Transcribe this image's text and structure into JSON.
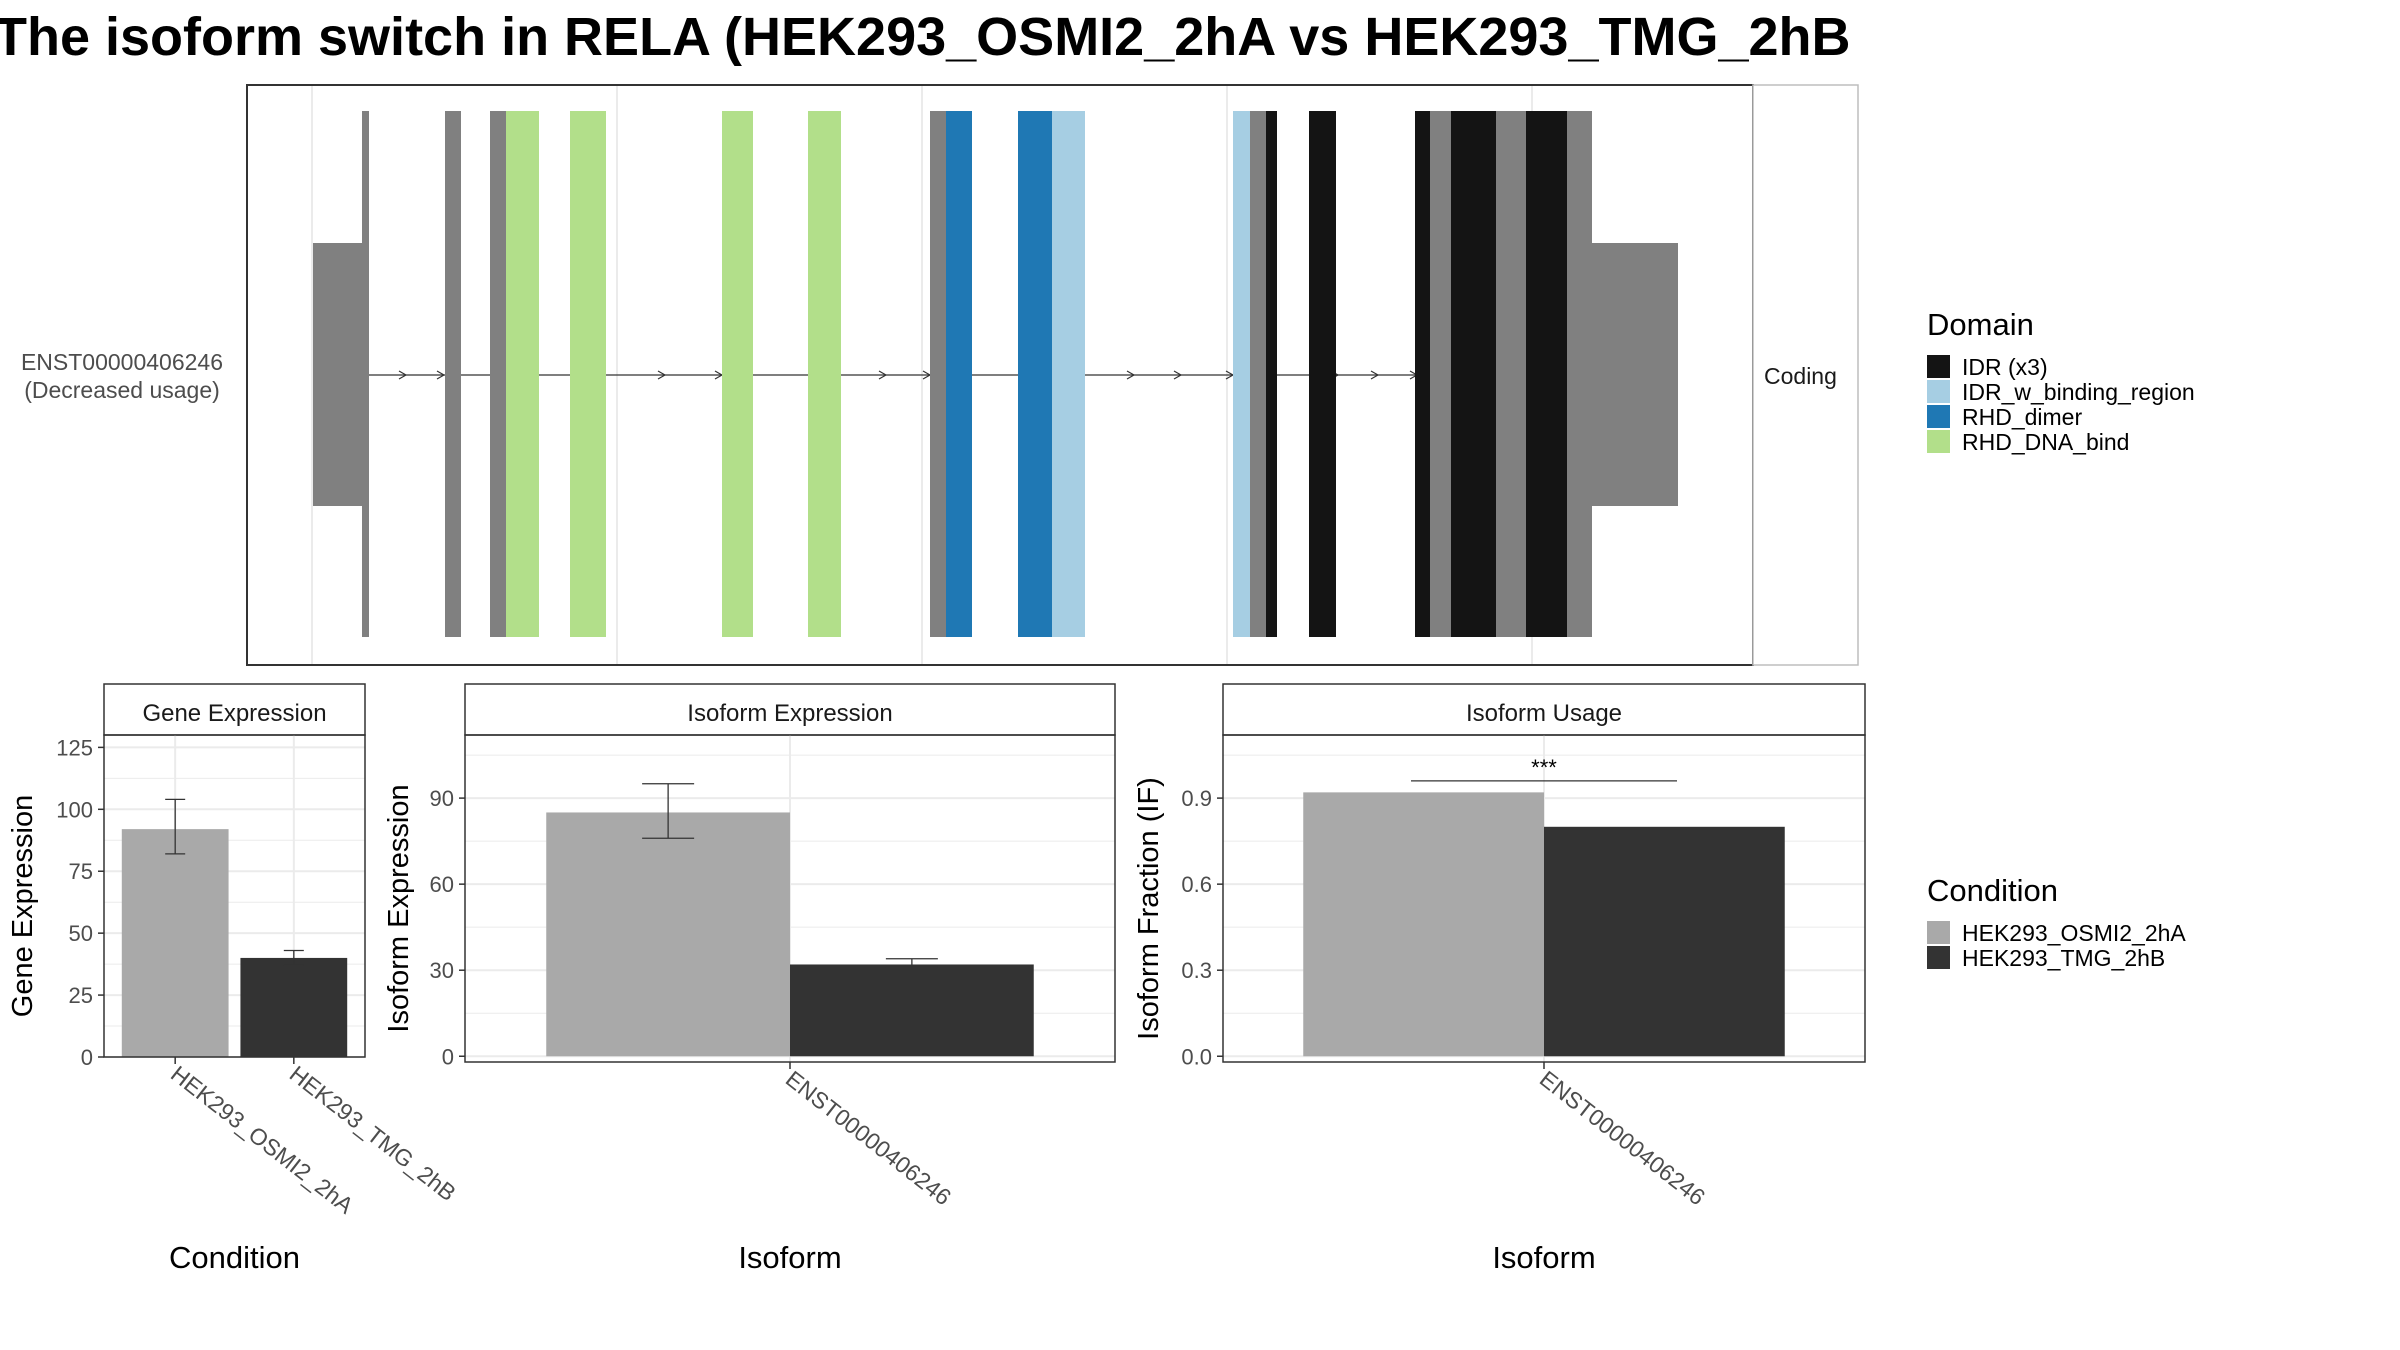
{
  "title": "The isoform switch in RELA (HEK293_OSMI2_2hA vs HEK293_TMG_2hB",
  "colors": {
    "exon_gray": "#808080",
    "intron_line": "#333333",
    "panel_border": "#333333",
    "grid": "#EBEBEB",
    "condition_a": "#A9A9A9",
    "condition_b": "#333333"
  },
  "transcript_panel": {
    "isoform_label_line1": "ENST00000406246",
    "isoform_label_line2": "(Decreased usage)",
    "strip_label": "Coding"
  },
  "domain_legend": {
    "title": "Domain",
    "items": [
      {
        "label": "IDR (x3)",
        "color": "#141414"
      },
      {
        "label": "IDR_w_binding_region",
        "color": "#A6CEE3"
      },
      {
        "label": "RHD_dimer",
        "color": "#1F78B4"
      },
      {
        "label": "RHD_DNA_bind",
        "color": "#B2DF8A"
      }
    ]
  },
  "condition_legend": {
    "title": "Condition",
    "items": [
      {
        "label": "HEK293_OSMI2_2hA",
        "color": "#A9A9A9"
      },
      {
        "label": "HEK293_TMG_2hB",
        "color": "#333333"
      }
    ]
  },
  "chart_data": [
    {
      "type": "bar",
      "title": "Gene Expression",
      "xlabel": "Condition",
      "ylabel": "Gene Expression",
      "categories": [
        "HEK293_OSMI2_2hA",
        "HEK293_TMG_2hB"
      ],
      "values": [
        92,
        40
      ],
      "error_low": [
        82,
        37
      ],
      "error_high": [
        104,
        43
      ],
      "ylim": [
        0,
        130
      ],
      "yticks": [
        0,
        25,
        50,
        75,
        100,
        125
      ],
      "tick_labels": [
        "0",
        "25",
        "50",
        "75",
        "100",
        "125"
      ],
      "grid": true
    },
    {
      "type": "bar",
      "title": "Isoform Expression",
      "xlabel": "Isoform",
      "ylabel": "Isoform Expression",
      "categories": [
        "ENST00000406246"
      ],
      "series": [
        {
          "name": "HEK293_OSMI2_2hA",
          "values": [
            85
          ],
          "error_low": [
            76
          ],
          "error_high": [
            95
          ]
        },
        {
          "name": "HEK293_TMG_2hB",
          "values": [
            32
          ],
          "error_low": [
            31
          ],
          "error_high": [
            34
          ]
        }
      ],
      "ylim": [
        -2,
        112
      ],
      "yticks": [
        0,
        30,
        60,
        90
      ],
      "tick_labels": [
        "0",
        "30",
        "60",
        "90"
      ],
      "grid": true
    },
    {
      "type": "bar",
      "title": "Isoform Usage",
      "xlabel": "Isoform",
      "ylabel": "Isoform Fraction (IF)",
      "categories": [
        "ENST00000406246"
      ],
      "series": [
        {
          "name": "HEK293_OSMI2_2hA",
          "values": [
            0.92
          ]
        },
        {
          "name": "HEK293_TMG_2hB",
          "values": [
            0.8
          ]
        }
      ],
      "significance": "***",
      "ylim": [
        -0.02,
        1.12
      ],
      "yticks": [
        0.0,
        0.3,
        0.6,
        0.9
      ],
      "tick_labels": [
        "0.0",
        "0.3",
        "0.6",
        "0.9"
      ],
      "grid": true
    }
  ]
}
